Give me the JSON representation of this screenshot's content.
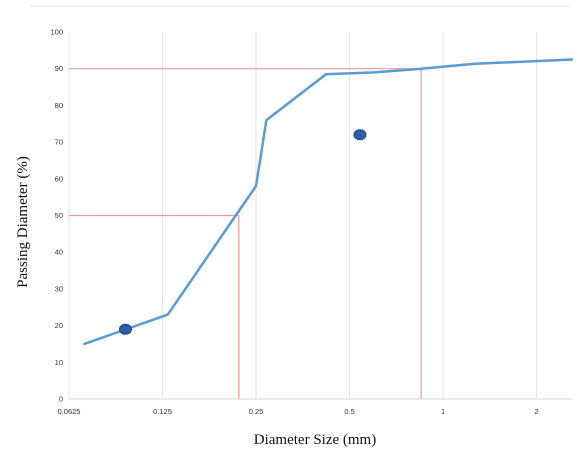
{
  "chart_data": {
    "type": "line",
    "xlabel": "Diameter Size (mm)",
    "ylabel": "Passing Diameter (%)",
    "x_scale": "log2",
    "xlim": [
      0.0625,
      2.6
    ],
    "ylim": [
      0,
      100
    ],
    "x_ticks": [
      {
        "value": 0.0625,
        "label": "0.0625"
      },
      {
        "value": 0.125,
        "label": "0.125"
      },
      {
        "value": 0.25,
        "label": "0.25"
      },
      {
        "value": 0.5,
        "label": "0.5"
      },
      {
        "value": 1,
        "label": "1"
      },
      {
        "value": 2,
        "label": "2"
      }
    ],
    "y_ticks": [
      0,
      10,
      20,
      30,
      40,
      50,
      60,
      70,
      80,
      90,
      100
    ],
    "grid": {
      "horizontal": false,
      "vertical": true
    },
    "series": [
      {
        "color": "#5b9bd5",
        "x": [
          0.07,
          0.13,
          0.215,
          0.25,
          0.27,
          0.42,
          0.6,
          0.85,
          1.25,
          2.6
        ],
        "y": [
          15,
          23,
          50,
          58,
          76,
          88.5,
          89,
          90,
          91.3,
          92.5
        ]
      }
    ],
    "markers": [
      {
        "x": 0.095,
        "y": 19,
        "color": "#2e5ea8"
      },
      {
        "x": 0.54,
        "y": 72,
        "color": "#2e5ea8"
      }
    ],
    "reference_lines": [
      {
        "y": 50,
        "x": 0.22,
        "color": "#e8999a"
      },
      {
        "y": 90,
        "x": 0.85,
        "color": "#e8999a"
      }
    ]
  }
}
